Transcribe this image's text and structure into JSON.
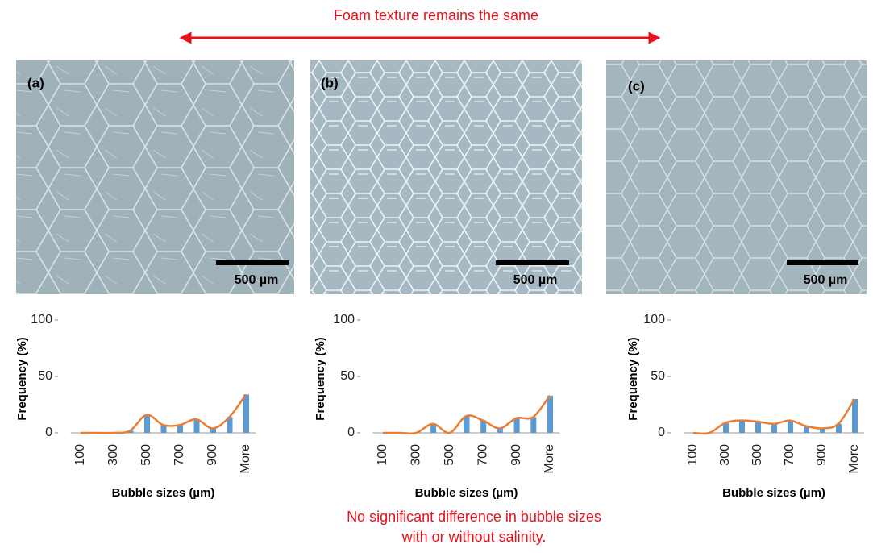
{
  "header_note": "Foam texture remains the same",
  "footer_note": [
    "No significant difference in bubble sizes",
    "with or without salinity."
  ],
  "panels": [
    {
      "label": "(a)",
      "scale_bar": "500 µm"
    },
    {
      "label": "(b)",
      "scale_bar": "500 µm"
    },
    {
      "label": "(c)",
      "scale_bar": "500 µm"
    }
  ],
  "chart_data": [
    {
      "type": "bar",
      "x_label": "Bubble sizes (µm)",
      "y_label": "Frequency (%)",
      "categories": [
        "100",
        null,
        "300",
        null,
        "500",
        null,
        "700",
        null,
        "900",
        null,
        "More"
      ],
      "series": [
        {
          "type": "bar",
          "color": "#5b9bd5",
          "values": [
            0,
            0,
            0,
            2,
            16,
            7,
            7,
            12,
            4,
            14,
            34
          ]
        },
        {
          "type": "line",
          "color": "#ed7d31",
          "values": [
            0,
            0,
            0,
            2,
            16,
            7,
            7,
            12,
            4,
            14,
            34
          ]
        }
      ],
      "ylim": [
        0,
        100
      ],
      "yticks": [
        0,
        50,
        100
      ]
    },
    {
      "type": "bar",
      "x_label": "Bubble sizes (µm)",
      "y_label": "Frequency (%)",
      "categories": [
        "100",
        null,
        "300",
        null,
        "500",
        null,
        "700",
        null,
        "900",
        null,
        "More"
      ],
      "series": [
        {
          "type": "bar",
          "color": "#5b9bd5",
          "values": [
            0,
            0,
            0,
            8,
            0,
            15,
            11,
            4,
            13,
            14,
            33
          ]
        },
        {
          "type": "line",
          "color": "#ed7d31",
          "values": [
            0,
            0,
            0,
            8,
            0,
            15,
            11,
            4,
            13,
            14,
            33
          ]
        }
      ],
      "ylim": [
        0,
        100
      ],
      "yticks": [
        0,
        50,
        100
      ]
    },
    {
      "type": "bar",
      "x_label": "Bubble sizes (µm)",
      "y_label": "Frequency (%)",
      "categories": [
        "100",
        null,
        "300",
        null,
        "500",
        null,
        "700",
        null,
        "900",
        null,
        "More"
      ],
      "series": [
        {
          "type": "bar",
          "color": "#5b9bd5",
          "values": [
            0,
            0,
            9,
            11,
            10,
            8,
            11,
            6,
            4,
            8,
            30
          ]
        },
        {
          "type": "line",
          "color": "#ed7d31",
          "values": [
            0,
            0,
            9,
            11,
            10,
            8,
            11,
            6,
            4,
            8,
            30
          ]
        }
      ],
      "ylim": [
        0,
        100
      ],
      "yticks": [
        0,
        50,
        100
      ]
    }
  ]
}
